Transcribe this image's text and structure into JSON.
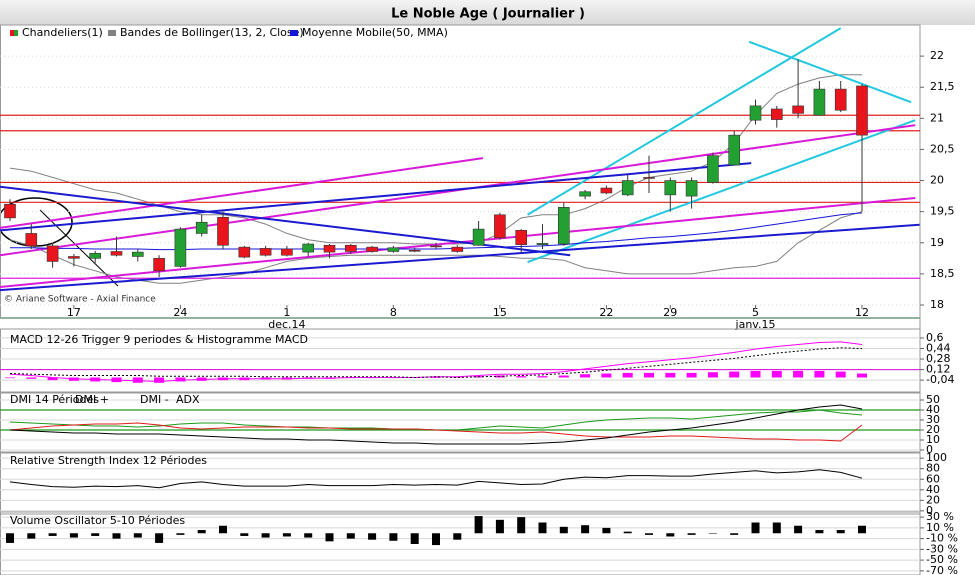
{
  "chart_data": [
    {
      "type": "candlestick",
      "title": "Le Noble Age  ( Journalier )",
      "watermark": "© Ariane Software - Axial Finance",
      "categories": [
        null,
        null,
        null,
        "17",
        null,
        null,
        null,
        null,
        "24",
        null,
        null,
        null,
        null,
        "1",
        null,
        null,
        null,
        null,
        "8",
        null,
        null,
        null,
        null,
        "15",
        null,
        null,
        null,
        null,
        "22",
        null,
        null,
        "29",
        null,
        null,
        null,
        "5",
        null,
        null,
        null,
        null,
        "12"
      ],
      "annotations": [
        {
          "text": "dec.14",
          "x": 13
        },
        {
          "text": "janv.15",
          "x": 35
        }
      ],
      "series": [
        {
          "name": "Chandeliers(1)",
          "color_up": "#22a032",
          "color_down": "#e8161c",
          "open": [
            19.62,
            19.15,
            18.95,
            18.78,
            18.75,
            18.86,
            18.78,
            18.75,
            18.62,
            19.15,
            19.41,
            18.93,
            18.91,
            18.9,
            18.85,
            18.96,
            18.96,
            18.93,
            18.86,
            18.88,
            18.95,
            18.93,
            18.96,
            19.45,
            19.2,
            18.97,
            18.98,
            19.75,
            19.88,
            19.77,
            20.05,
            19.77,
            19.75,
            19.97,
            20.25,
            20.97,
            21.15,
            21.2,
            21.05,
            21.47,
            21.52
          ],
          "high": [
            19.7,
            19.3,
            19.0,
            18.82,
            18.87,
            19.1,
            18.9,
            18.8,
            19.25,
            19.45,
            19.5,
            18.95,
            18.95,
            18.95,
            19.0,
            18.98,
            18.98,
            18.95,
            18.95,
            18.92,
            19.0,
            18.96,
            19.35,
            19.48,
            19.22,
            19.3,
            19.65,
            19.85,
            19.92,
            20.1,
            20.4,
            20.05,
            20.05,
            20.45,
            20.8,
            21.3,
            21.2,
            21.95,
            21.6,
            21.6,
            21.55
          ],
          "low": [
            19.35,
            18.9,
            18.6,
            18.62,
            18.68,
            18.78,
            18.7,
            18.45,
            18.6,
            19.1,
            18.9,
            18.75,
            18.78,
            18.78,
            18.78,
            18.75,
            18.82,
            18.84,
            18.84,
            18.85,
            18.9,
            18.84,
            18.95,
            19.05,
            18.85,
            18.9,
            18.95,
            19.7,
            19.78,
            19.75,
            19.8,
            19.5,
            19.55,
            19.95,
            20.25,
            20.9,
            20.85,
            21.0,
            21.05,
            21.1,
            19.5
          ],
          "close": [
            19.4,
            18.95,
            18.7,
            18.75,
            18.83,
            18.8,
            18.85,
            18.55,
            19.22,
            19.33,
            18.96,
            18.77,
            18.8,
            18.8,
            18.98,
            18.85,
            18.86,
            18.86,
            18.92,
            18.87,
            18.94,
            18.86,
            19.22,
            19.08,
            18.97,
            18.99,
            19.57,
            19.82,
            19.8,
            20.0,
            20.04,
            20.0,
            20.0,
            20.4,
            20.73,
            21.2,
            20.98,
            21.08,
            21.47,
            21.13,
            20.73
          ]
        }
      ],
      "overlays": [
        {
          "name": "Bandes de Bollinger(13, 2, Close)",
          "color": "#808080",
          "upper": [
            20.2,
            20.15,
            20.05,
            19.95,
            19.85,
            19.8,
            19.7,
            19.6,
            19.5,
            19.45,
            19.45,
            19.4,
            19.3,
            19.15,
            19.05,
            19.0,
            19.0,
            19.0,
            19.0,
            18.98,
            18.98,
            18.98,
            19.0,
            19.15,
            19.4,
            19.45,
            19.45,
            19.55,
            19.7,
            19.9,
            20.05,
            20.1,
            20.15,
            20.3,
            20.6,
            21.05,
            21.4,
            21.55,
            21.65,
            21.7,
            21.7
          ],
          "lower": [
            19.05,
            18.95,
            18.8,
            18.65,
            18.55,
            18.45,
            18.4,
            18.35,
            18.35,
            18.4,
            18.45,
            18.5,
            18.6,
            18.7,
            18.75,
            18.78,
            18.8,
            18.8,
            18.8,
            18.8,
            18.8,
            18.8,
            18.8,
            18.78,
            18.75,
            18.75,
            18.72,
            18.6,
            18.55,
            18.5,
            18.5,
            18.5,
            18.5,
            18.55,
            18.6,
            18.62,
            18.7,
            19.0,
            19.2,
            19.4,
            19.5
          ]
        },
        {
          "name": "Moyenne Mobile(50, MMA)",
          "color": "#1414d8",
          "values": [
            18.92,
            18.92,
            18.91,
            18.91,
            18.9,
            18.9,
            18.9,
            18.89,
            18.89,
            18.9,
            18.9,
            18.9,
            18.9,
            18.9,
            18.9,
            18.9,
            18.9,
            18.9,
            18.9,
            18.9,
            18.9,
            18.91,
            18.92,
            18.93,
            18.94,
            18.95,
            18.97,
            19.0,
            19.02,
            19.05,
            19.08,
            19.1,
            19.13,
            19.16,
            19.2,
            19.25,
            19.3,
            19.35,
            19.4,
            19.45,
            19.48
          ]
        }
      ],
      "hlines": [
        {
          "value": 21.05,
          "color": "#e02020"
        },
        {
          "value": 20.8,
          "color": "#e02020"
        },
        {
          "value": 19.97,
          "color": "#e02020"
        },
        {
          "value": 19.65,
          "color": "#e02020"
        },
        {
          "value": 18.43,
          "color": "#e020e0"
        }
      ],
      "trendlines": [
        {
          "color": "#22c8e0",
          "points": [
            [
              24.3,
              19.45
            ],
            [
              39,
              22.45
            ]
          ]
        },
        {
          "color": "#22c8e0",
          "points": [
            [
              24.3,
              18.69
            ],
            [
              42.5,
              20.97
            ]
          ]
        },
        {
          "color": "#22c8e0",
          "points": [
            [
              34.7,
              22.23
            ],
            [
              42.3,
              21.26
            ]
          ]
        },
        {
          "color": "#d81ad8",
          "points": [
            [
              -0.47,
              18.8
            ],
            [
              42.5,
              20.89
            ]
          ]
        },
        {
          "color": "#d81ad8",
          "points": [
            [
              -0.47,
              18.29
            ],
            [
              42.5,
              19.72
            ]
          ]
        },
        {
          "color": "#d81ad8",
          "points": [
            [
              -0.47,
              19.24
            ],
            [
              22.2,
              20.36
            ]
          ]
        },
        {
          "color": "#1a1ad0",
          "points": [
            [
              -0.47,
              19.9
            ],
            [
              26.3,
              18.8
            ]
          ]
        },
        {
          "color": "#1a1ad0",
          "points": [
            [
              -0.47,
              19.2
            ],
            [
              34.8,
              20.28
            ]
          ]
        },
        {
          "color": "#1a1ad0",
          "points": [
            [
              -0.47,
              18.24
            ],
            [
              42.7,
              19.29
            ]
          ]
        }
      ],
      "ylim": [
        18,
        22.5
      ],
      "yticks": [
        18,
        {
          "value": 18.5,
          "label": "18,5"
        },
        19,
        {
          "value": 19.5,
          "label": "19,5"
        },
        20,
        {
          "value": 20.5,
          "label": "20,5"
        },
        21,
        {
          "value": 21.5,
          "label": "21,5"
        },
        22
      ],
      "grid": true
    },
    {
      "type": "macd",
      "title": "MACD 12-26  Trigger 9 periodes & Histogramme MACD",
      "histogram": {
        "color": "#ff00ff",
        "values": [
          -0.01,
          -0.02,
          -0.04,
          -0.05,
          -0.06,
          -0.07,
          -0.08,
          -0.08,
          -0.06,
          -0.05,
          -0.04,
          -0.04,
          -0.03,
          -0.03,
          -0.02,
          -0.02,
          -0.01,
          -0.01,
          -0.01,
          0.0,
          0.0,
          0.01,
          0.02,
          0.03,
          0.02,
          0.02,
          0.03,
          0.05,
          0.06,
          0.07,
          0.07,
          0.07,
          0.07,
          0.08,
          0.09,
          0.1,
          0.1,
          0.1,
          0.1,
          0.09,
          0.06
        ]
      },
      "series": [
        {
          "color": "#ff00ff",
          "dashed": false,
          "values": [
            0.05,
            0.03,
            0.0,
            -0.02,
            -0.03,
            -0.04,
            -0.05,
            -0.06,
            -0.04,
            -0.03,
            -0.02,
            -0.02,
            -0.02,
            -0.02,
            -0.01,
            -0.01,
            0.0,
            0.0,
            0.0,
            0.0,
            0.01,
            0.01,
            0.03,
            0.05,
            0.05,
            0.06,
            0.09,
            0.13,
            0.17,
            0.21,
            0.24,
            0.27,
            0.3,
            0.34,
            0.38,
            0.43,
            0.47,
            0.5,
            0.53,
            0.54,
            0.5
          ]
        },
        {
          "color": "#000000",
          "dashed": true,
          "values": [
            0.06,
            0.05,
            0.04,
            0.03,
            0.03,
            0.03,
            0.03,
            0.02,
            0.02,
            0.02,
            0.02,
            0.02,
            0.01,
            0.01,
            0.01,
            0.01,
            0.01,
            0.01,
            0.01,
            0.0,
            0.01,
            0.0,
            0.01,
            0.02,
            0.03,
            0.04,
            0.06,
            0.08,
            0.11,
            0.14,
            0.17,
            0.2,
            0.23,
            0.26,
            0.29,
            0.33,
            0.37,
            0.4,
            0.43,
            0.45,
            0.44
          ]
        }
      ],
      "hlines": [
        {
          "value": 0.12,
          "color": "#e020e0"
        }
      ],
      "ylim": [
        -0.22,
        0.69
      ],
      "yticks": [
        {
          "value": 0.6,
          "label": "0,6"
        },
        {
          "value": 0.44,
          "label": "0,44"
        },
        {
          "value": 0.28,
          "label": "0,28"
        },
        {
          "value": 0.12,
          "label": "0,12"
        },
        {
          "value": -0.04,
          "label": "-0,04"
        }
      ],
      "grid": true
    },
    {
      "type": "line",
      "title": "DMI 14 Périodes",
      "series": [
        {
          "name": "DMI +",
          "color": "#1a9a1a",
          "values": [
            28,
            27,
            26,
            25,
            24,
            24,
            23,
            24,
            26,
            27,
            27,
            25,
            24,
            23,
            23,
            22,
            22,
            22,
            21,
            21,
            20,
            20,
            22,
            24,
            23,
            22,
            25,
            28,
            30,
            31,
            32,
            32,
            31,
            33,
            35,
            37,
            38,
            38,
            40,
            37,
            35
          ]
        },
        {
          "name": "DMI -",
          "color": "#e01a1a",
          "values": [
            20,
            22,
            24,
            25,
            26,
            26,
            27,
            25,
            22,
            21,
            22,
            23,
            23,
            23,
            22,
            22,
            21,
            21,
            21,
            21,
            20,
            19,
            18,
            17,
            17,
            18,
            16,
            14,
            13,
            13,
            13,
            14,
            14,
            13,
            12,
            11,
            11,
            10,
            10,
            9,
            25
          ]
        },
        {
          "name": "ADX",
          "color": "#000000",
          "values": [
            20,
            19,
            18,
            17,
            17,
            16,
            16,
            16,
            15,
            14,
            13,
            12,
            11,
            11,
            10,
            10,
            9,
            8,
            7,
            7,
            6,
            6,
            6,
            6,
            6,
            7,
            8,
            10,
            12,
            15,
            18,
            20,
            22,
            25,
            28,
            32,
            36,
            40,
            43,
            45,
            41
          ]
        }
      ],
      "hlines": [
        {
          "value": 40,
          "color": "#1a9a1a"
        },
        {
          "value": 20,
          "color": "#1a9a1a"
        }
      ],
      "ylim": [
        0,
        55
      ],
      "yticks": [
        50,
        40,
        30,
        20,
        10,
        0
      ],
      "grid": true
    },
    {
      "type": "line",
      "title": "Relative Strength Index 12 Périodes",
      "series": [
        {
          "color": "#000000",
          "values": [
            55,
            50,
            46,
            45,
            47,
            46,
            48,
            44,
            52,
            55,
            50,
            47,
            47,
            47,
            50,
            48,
            48,
            48,
            50,
            49,
            50,
            49,
            56,
            53,
            50,
            51,
            60,
            64,
            63,
            67,
            67,
            66,
            66,
            70,
            73,
            76,
            72,
            74,
            78,
            73,
            62
          ]
        }
      ],
      "ylim": [
        -4,
        106
      ],
      "yticks": [
        100,
        80,
        60,
        40,
        20,
        0
      ],
      "grid": true
    },
    {
      "type": "bar",
      "title": "Volume Oscillator 5-10 Périodes",
      "color": "#000000",
      "values": [
        -18,
        -10,
        -5,
        -8,
        -5,
        -10,
        -8,
        -18,
        -3,
        6,
        14,
        -5,
        -8,
        -6,
        -8,
        -15,
        -10,
        -12,
        -14,
        -20,
        -22,
        -12,
        32,
        25,
        30,
        20,
        12,
        15,
        10,
        3,
        -3,
        -6,
        -3,
        0,
        -3,
        20,
        20,
        14,
        6,
        6,
        14
      ],
      "ylim": [
        -74,
        34
      ],
      "yticks": [
        {
          "value": 30,
          "label": "30 %"
        },
        {
          "value": 10,
          "label": "10 %"
        },
        {
          "value": -10,
          "label": "-10 %"
        },
        {
          "value": -30,
          "label": "-30 %"
        },
        {
          "value": -50,
          "label": "-50 %"
        },
        {
          "value": -70,
          "label": "-70 %"
        }
      ],
      "grid": true
    }
  ]
}
